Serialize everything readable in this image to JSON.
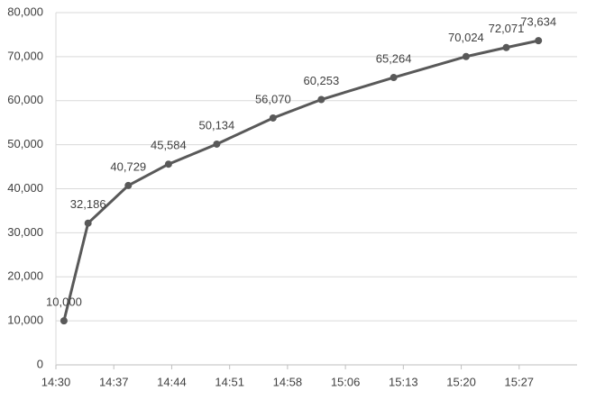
{
  "chart_data": {
    "type": "line",
    "x": [
      871,
      874,
      879,
      884,
      890,
      897,
      903,
      912,
      921,
      926,
      930
    ],
    "series": [
      {
        "color": "#595959",
        "values": [
          10000,
          32186,
          40729,
          45584,
          50134,
          56070,
          60253,
          65264,
          70024,
          72071,
          73634
        ],
        "value_labels": [
          "10,000",
          "32,186",
          "40,729",
          "45,584",
          "50,134",
          "56,070",
          "60,253",
          "65,264",
          "70,024",
          "72,071",
          "73,634"
        ]
      }
    ],
    "xlim": [
      870,
      934.8
    ],
    "xticks": [
      {
        "value": 870,
        "label": "14:30"
      },
      {
        "value": 877.2,
        "label": "14:37"
      },
      {
        "value": 884.4,
        "label": "14:44"
      },
      {
        "value": 891.6,
        "label": "14:51"
      },
      {
        "value": 898.8,
        "label": "14:58"
      },
      {
        "value": 906,
        "label": "15:06"
      },
      {
        "value": 913.2,
        "label": "15:13"
      },
      {
        "value": 920.4,
        "label": "15:20"
      },
      {
        "value": 927.6,
        "label": "15:27"
      }
    ],
    "ylim": [
      0,
      80000
    ],
    "yticks": [
      0,
      {
        "value": 10000,
        "label": "10,000"
      },
      {
        "value": 20000,
        "label": "20,000"
      },
      {
        "value": 30000,
        "label": "30,000"
      },
      {
        "value": 40000,
        "label": "40,000"
      },
      {
        "value": 50000,
        "label": "50,000"
      },
      {
        "value": 60000,
        "label": "60,000"
      },
      {
        "value": 70000,
        "label": "70,000"
      },
      {
        "value": 80000,
        "label": "80,000"
      }
    ],
    "grid": true
  }
}
